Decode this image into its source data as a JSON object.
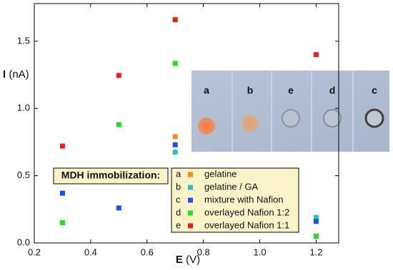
{
  "chart_data": {
    "type": "scatter",
    "x_label_symbol": "E",
    "x_label_unit": "(V)",
    "y_label_symbol": "I",
    "y_label_unit": "(nA)",
    "xlim": [
      0.2,
      1.28
    ],
    "ylim": [
      0,
      1.78
    ],
    "xticks": [
      0.2,
      0.4,
      0.6,
      0.8,
      {
        "value": 1.0,
        "label": "1.0"
      },
      1.2
    ],
    "yticks": [
      {
        "value": 0,
        "label": "0.0"
      },
      0.5,
      {
        "value": 1.0,
        "label": "1.0"
      },
      1.5
    ],
    "legend_title": "MDH immobilization:",
    "series": [
      {
        "letter": "a",
        "name": "gelatine",
        "color": "#f28c1e",
        "x": [
          0.7
        ],
        "values": [
          0.79
        ]
      },
      {
        "letter": "b",
        "name": "gelatine / GA",
        "color": "#22c4c4",
        "x": [
          0.7,
          1.2
        ],
        "values": [
          0.675,
          0.19
        ]
      },
      {
        "letter": "c",
        "name": "mixture with Nafion",
        "color": "#1e4ff0",
        "x": [
          0.3,
          0.5,
          0.7,
          1.2
        ],
        "values": [
          0.37,
          0.26,
          0.73,
          0.16
        ]
      },
      {
        "letter": "d",
        "name": "overlayed Nafion 1:2",
        "color": "#22dd22",
        "x": [
          0.3,
          0.5,
          0.7,
          1.2
        ],
        "values": [
          0.15,
          0.88,
          1.335,
          0.05
        ]
      },
      {
        "letter": "e",
        "name": "overlayed Nafion 1:1",
        "color": "#ee1c1c",
        "x": [
          0.3,
          0.5,
          0.7,
          1.2
        ],
        "values": [
          0.72,
          1.245,
          1.66,
          1.4
        ]
      }
    ],
    "photo_labels": [
      "a",
      "b",
      "e",
      "d",
      "c"
    ]
  }
}
